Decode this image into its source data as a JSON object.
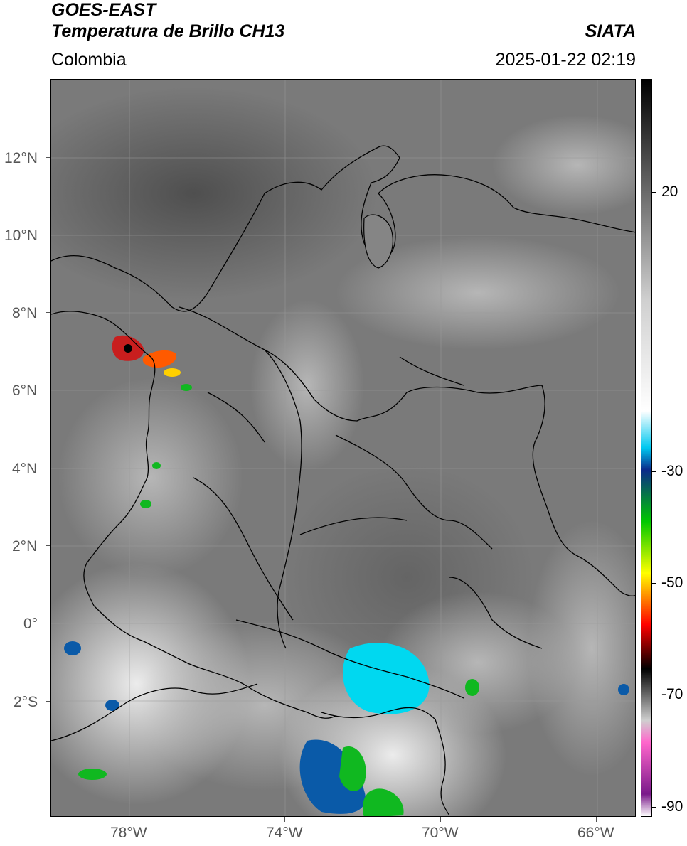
{
  "header": {
    "satellite": "GOES-EAST",
    "product": "Temperatura de Brillo CH13",
    "region": "Colombia",
    "brand": "SIATA",
    "timestamp": "2025-01-22 02:19"
  },
  "map": {
    "lon_range": [
      -80,
      -65
    ],
    "lat_range": [
      -5,
      14
    ],
    "lat_labels": [
      "12°N",
      "10°N",
      "8°N",
      "6°N",
      "4°N",
      "2°N",
      "0°",
      "2°S"
    ],
    "lon_labels": [
      "78°W",
      "74°W",
      "70°W",
      "66°W"
    ],
    "gridlines": true
  },
  "colorbar": {
    "labels": [
      "20",
      "-30",
      "-50",
      "-70",
      "-90"
    ],
    "unit": "",
    "stops": [
      {
        "color": "#000000",
        "at": 0
      },
      {
        "color": "#d0d0d0",
        "at": 0.3
      },
      {
        "color": "#ffffff",
        "at": 0.45
      },
      {
        "color": "#00c8f0",
        "at": 0.5
      },
      {
        "color": "#0a2a8a",
        "at": 0.53
      },
      {
        "color": "#00c800",
        "at": 0.6
      },
      {
        "color": "#ffff00",
        "at": 0.67
      },
      {
        "color": "#ff0000",
        "at": 0.74
      },
      {
        "color": "#000000",
        "at": 0.8
      },
      {
        "color": "#cfcfcf",
        "at": 0.87
      },
      {
        "color": "#ff66cc",
        "at": 0.9
      },
      {
        "color": "#7a1a8a",
        "at": 0.97
      },
      {
        "color": "#ffffff",
        "at": 1
      }
    ]
  }
}
